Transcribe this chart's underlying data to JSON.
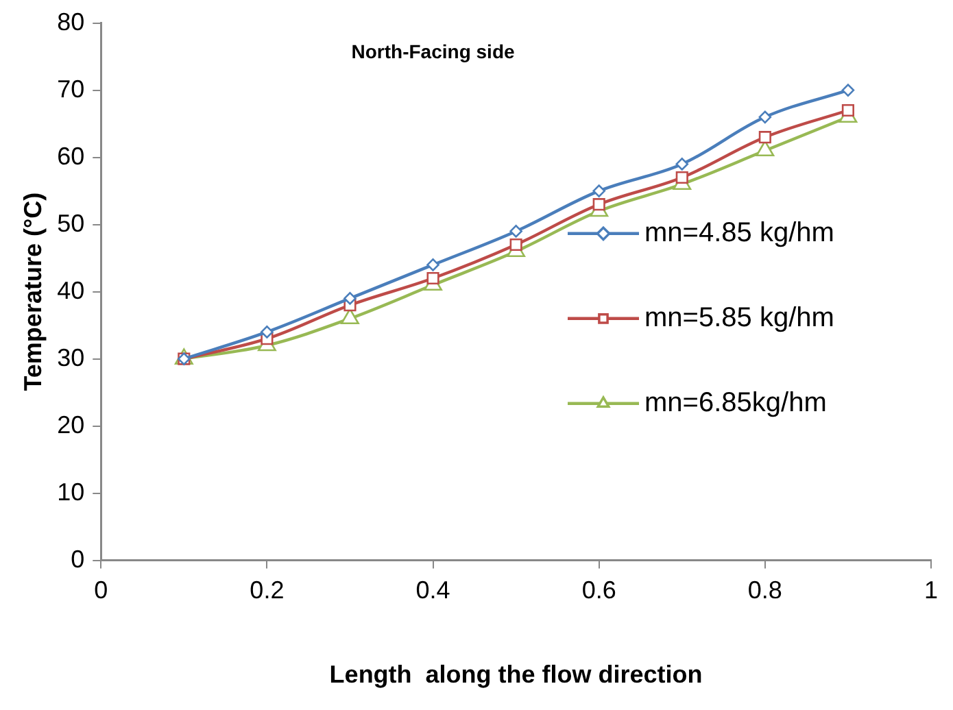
{
  "chart_data": {
    "type": "line",
    "title": "North-Facing side",
    "xlabel": "Length  along the flow direction",
    "ylabel": "Temperature (°C)",
    "x": [
      0.1,
      0.2,
      0.3,
      0.4,
      0.5,
      0.6,
      0.7,
      0.8,
      0.9
    ],
    "series": [
      {
        "name": "mn=4.85 kg/hm",
        "color": "#4a7ebb",
        "marker": "diamond",
        "values": [
          30,
          34,
          39,
          44,
          49,
          55,
          59,
          66,
          70
        ]
      },
      {
        "name": "mn=5.85 kg/hm",
        "color": "#be4b48",
        "marker": "square",
        "values": [
          30,
          33,
          38,
          42,
          47,
          53,
          57,
          63,
          67
        ]
      },
      {
        "name": "mn=6.85kg/hm",
        "color": "#98b954",
        "marker": "triangle",
        "values": [
          30,
          32,
          36,
          41,
          46,
          52,
          56,
          61,
          66
        ]
      }
    ],
    "xlim": [
      0,
      1
    ],
    "xticks": [
      0,
      0.2,
      0.4,
      0.6,
      0.8,
      1
    ],
    "ylim": [
      0,
      80
    ],
    "yticks": [
      0,
      10,
      20,
      30,
      40,
      50,
      60,
      70,
      80
    ],
    "grid": false,
    "legend": "right",
    "line_style": "solid"
  }
}
